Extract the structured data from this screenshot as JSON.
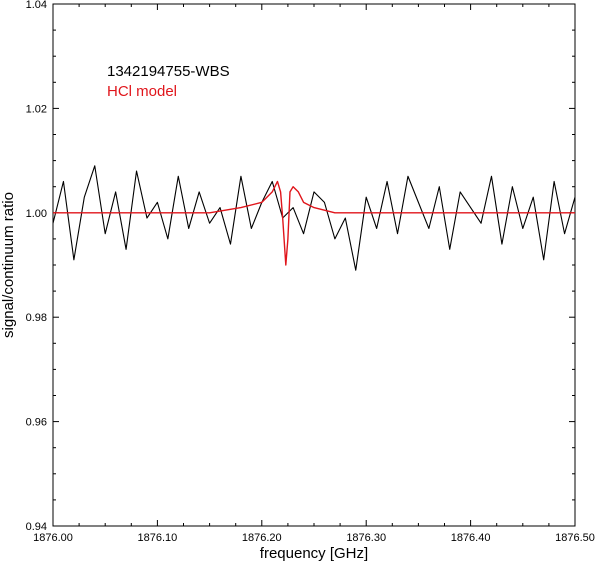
{
  "chart_data": {
    "type": "line",
    "xlabel": "frequency [GHz]",
    "ylabel": "signal/continuum ratio",
    "xlim": [
      1876.0,
      1876.5
    ],
    "ylim": [
      0.94,
      1.04
    ],
    "x_ticks": [
      "1876.00",
      "1876.10",
      "1876.20",
      "1876.30",
      "1876.40",
      "1876.50"
    ],
    "y_ticks": [
      "0.94",
      "0.96",
      "0.98",
      "1.00",
      "1.02",
      "1.04"
    ],
    "grid": false,
    "legend_position": "top-left",
    "series": [
      {
        "name": "1342194755-WBS",
        "color": "#000000",
        "x": [
          1876.0,
          1876.01,
          1876.02,
          1876.03,
          1876.04,
          1876.05,
          1876.06,
          1876.07,
          1876.08,
          1876.09,
          1876.1,
          1876.11,
          1876.12,
          1876.13,
          1876.14,
          1876.15,
          1876.16,
          1876.17,
          1876.18,
          1876.19,
          1876.2,
          1876.21,
          1876.22,
          1876.23,
          1876.24,
          1876.25,
          1876.26,
          1876.27,
          1876.28,
          1876.29,
          1876.3,
          1876.31,
          1876.32,
          1876.33,
          1876.34,
          1876.35,
          1876.36,
          1876.37,
          1876.38,
          1876.39,
          1876.4,
          1876.41,
          1876.42,
          1876.43,
          1876.44,
          1876.45,
          1876.46,
          1876.47,
          1876.48,
          1876.49,
          1876.5
        ],
        "y": [
          0.998,
          1.006,
          0.991,
          1.003,
          1.009,
          0.996,
          1.004,
          0.993,
          1.008,
          0.999,
          1.002,
          0.995,
          1.007,
          0.997,
          1.004,
          0.998,
          1.001,
          0.994,
          1.007,
          0.997,
          1.002,
          1.006,
          0.999,
          1.001,
          0.996,
          1.004,
          1.002,
          0.995,
          0.999,
          0.989,
          1.003,
          0.997,
          1.006,
          0.996,
          1.007,
          1.002,
          0.997,
          1.005,
          0.993,
          1.004,
          1.001,
          0.998,
          1.007,
          0.994,
          1.005,
          0.997,
          1.003,
          0.991,
          1.006,
          0.996,
          1.003
        ]
      },
      {
        "name": "HCl model",
        "color": "#e0151b",
        "x": [
          1876.0,
          1876.15,
          1876.18,
          1876.2,
          1876.21,
          1876.215,
          1876.218,
          1876.22,
          1876.223,
          1876.225,
          1876.227,
          1876.23,
          1876.235,
          1876.24,
          1876.25,
          1876.27,
          1876.3,
          1876.5
        ],
        "y": [
          1.0,
          1.0,
          1.001,
          1.002,
          1.004,
          1.006,
          1.004,
          0.999,
          0.99,
          0.995,
          1.004,
          1.005,
          1.004,
          1.002,
          1.001,
          1.0,
          1.0,
          1.0
        ]
      }
    ]
  }
}
